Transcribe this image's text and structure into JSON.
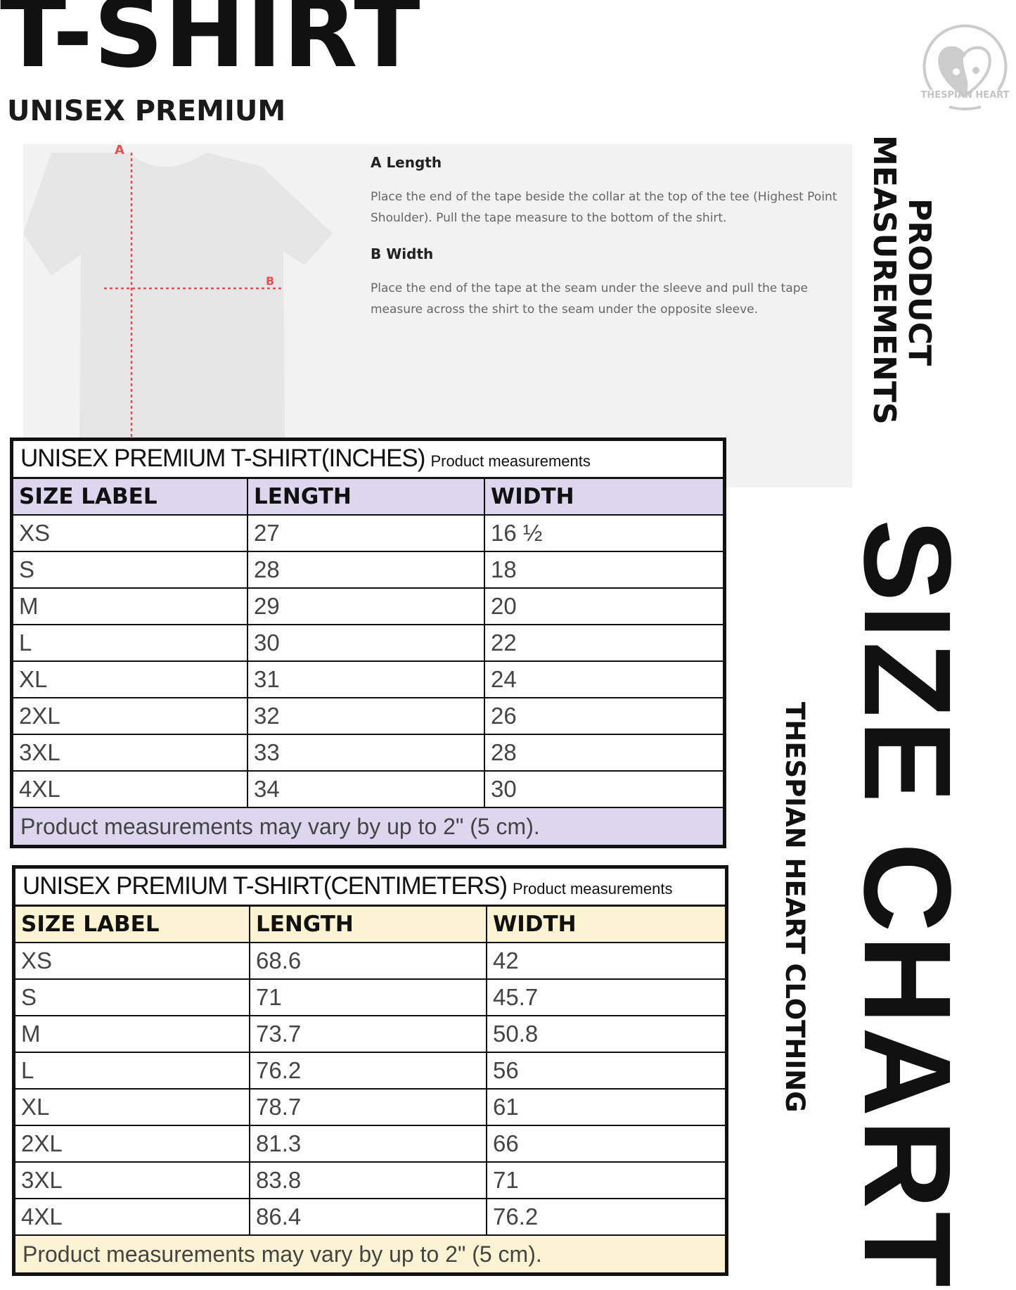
{
  "header": {
    "title": "T-SHIRT",
    "subtitle": "UNISEX PREMIUM"
  },
  "logo": {
    "text": "THESPIAN HEART",
    "icon": "heart-face-logo"
  },
  "diagram": {
    "label_a": "A",
    "label_b": "B",
    "line_color": "#e8504f"
  },
  "measurements": [
    {
      "title": "A Length",
      "text": "Place the end of the tape beside the collar at the top of the tee (Highest Point Shoulder). Pull the tape measure to the bottom of the shirt."
    },
    {
      "title": "B Width",
      "text": "Place the end of the tape at the seam under the sleeve and pull the tape measure across the shirt to the seam under the opposite sleeve."
    }
  ],
  "side": {
    "product_line1": "PRODUCT",
    "product_line2": "MEASUREMENTS",
    "size_chart": "SIZE CHART",
    "brand": "THESPIAN HEART CLOTHING"
  },
  "tables": [
    {
      "title": "UNISEX PREMIUM T-SHIRT(INCHES)",
      "subtitle": "Product measurements",
      "header_color": "#dcd7ee",
      "columns": [
        "SIZE LABEL",
        "LENGTH",
        "WIDTH"
      ],
      "rows": [
        [
          "XS",
          "27",
          "16 ½"
        ],
        [
          "S",
          "28",
          "18"
        ],
        [
          "M",
          "29",
          "20"
        ],
        [
          "L",
          "30",
          "22"
        ],
        [
          "XL",
          "31",
          "24"
        ],
        [
          "2XL",
          "32",
          "26"
        ],
        [
          "3XL",
          "33",
          "28"
        ],
        [
          "4XL",
          "34",
          "30"
        ]
      ],
      "note": "Product measurements may vary by up to 2\" (5 cm)."
    },
    {
      "title": "UNISEX PREMIUM T-SHIRT(CENTIMETERS)",
      "subtitle": "Product measurements",
      "header_color": "#fcf3d2",
      "columns": [
        "SIZE LABEL",
        "LENGTH",
        "WIDTH"
      ],
      "rows": [
        [
          "XS",
          "68.6",
          "42"
        ],
        [
          "S",
          "71",
          "45.7"
        ],
        [
          "M",
          "73.7",
          "50.8"
        ],
        [
          "L",
          "76.2",
          "56"
        ],
        [
          "XL",
          "78.7",
          "61"
        ],
        [
          "2XL",
          "81.3",
          "66"
        ],
        [
          "3XL",
          "83.8",
          "71"
        ],
        [
          "4XL",
          "86.4",
          "76.2"
        ]
      ],
      "note": "Product measurements may vary by up to 2\" (5 cm)."
    }
  ]
}
